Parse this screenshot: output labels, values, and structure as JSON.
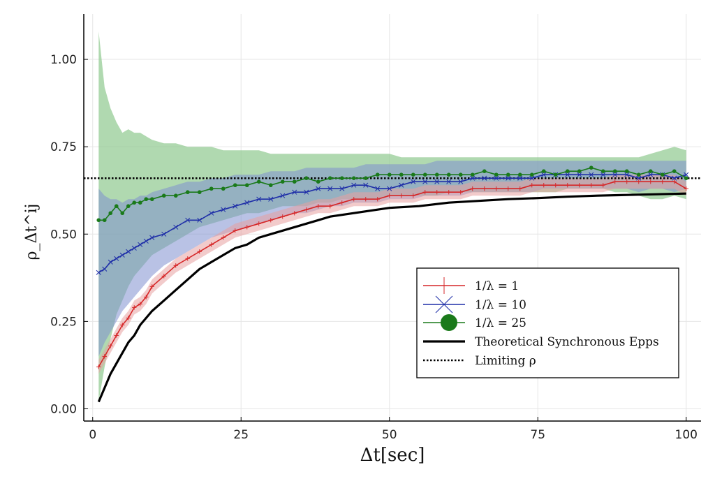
{
  "chart_data": {
    "type": "line",
    "title": "",
    "xlabel": "Δt[sec]",
    "ylabel": "ρ_Δt^ij",
    "xlim": [
      -1.5,
      102.5
    ],
    "ylim": [
      -0.035,
      1.13
    ],
    "xticks": [
      0,
      25,
      50,
      75,
      100
    ],
    "xtick_labels": [
      "0",
      "25",
      "50",
      "75",
      "100"
    ],
    "yticks": [
      0,
      0.25,
      0.5,
      0.75,
      1.0
    ],
    "ytick_labels": [
      "0.00",
      "0.25",
      "0.50",
      "0.75",
      "1.00"
    ],
    "grid": true,
    "legend_position": "bottom-right",
    "limiting_rho": 0.66,
    "series": [
      {
        "name": "1/λ = 1",
        "color": "#d62728",
        "band_color": "#e8a0a0",
        "marker": "plus",
        "x": [
          1,
          2,
          3,
          4,
          5,
          6,
          7,
          8,
          9,
          10,
          12,
          14,
          16,
          18,
          20,
          22,
          24,
          26,
          28,
          30,
          32,
          34,
          36,
          38,
          40,
          42,
          44,
          46,
          48,
          50,
          52,
          54,
          56,
          58,
          60,
          62,
          64,
          66,
          68,
          70,
          72,
          74,
          76,
          78,
          80,
          82,
          84,
          86,
          88,
          90,
          92,
          94,
          96,
          98,
          100
        ],
        "values": [
          0.12,
          0.15,
          0.18,
          0.21,
          0.24,
          0.26,
          0.29,
          0.3,
          0.32,
          0.35,
          0.38,
          0.41,
          0.43,
          0.45,
          0.47,
          0.49,
          0.51,
          0.52,
          0.53,
          0.54,
          0.55,
          0.56,
          0.57,
          0.58,
          0.58,
          0.59,
          0.6,
          0.6,
          0.6,
          0.61,
          0.61,
          0.61,
          0.62,
          0.62,
          0.62,
          0.62,
          0.63,
          0.63,
          0.63,
          0.63,
          0.63,
          0.64,
          0.64,
          0.64,
          0.64,
          0.64,
          0.64,
          0.64,
          0.65,
          0.65,
          0.65,
          0.65,
          0.65,
          0.65,
          0.63
        ],
        "lower": [
          0.1,
          0.13,
          0.16,
          0.19,
          0.22,
          0.24,
          0.27,
          0.28,
          0.3,
          0.33,
          0.36,
          0.39,
          0.41,
          0.43,
          0.45,
          0.47,
          0.49,
          0.5,
          0.51,
          0.52,
          0.53,
          0.54,
          0.55,
          0.56,
          0.56,
          0.57,
          0.58,
          0.58,
          0.58,
          0.59,
          0.59,
          0.59,
          0.6,
          0.6,
          0.6,
          0.6,
          0.61,
          0.61,
          0.61,
          0.61,
          0.61,
          0.62,
          0.62,
          0.62,
          0.62,
          0.62,
          0.62,
          0.62,
          0.63,
          0.63,
          0.63,
          0.63,
          0.63,
          0.63,
          0.61
        ],
        "upper": [
          0.14,
          0.17,
          0.2,
          0.23,
          0.26,
          0.28,
          0.31,
          0.32,
          0.34,
          0.37,
          0.4,
          0.43,
          0.45,
          0.47,
          0.49,
          0.51,
          0.53,
          0.54,
          0.55,
          0.56,
          0.57,
          0.58,
          0.59,
          0.6,
          0.6,
          0.61,
          0.62,
          0.62,
          0.62,
          0.63,
          0.63,
          0.63,
          0.64,
          0.64,
          0.64,
          0.64,
          0.65,
          0.65,
          0.65,
          0.65,
          0.65,
          0.66,
          0.66,
          0.66,
          0.66,
          0.66,
          0.66,
          0.66,
          0.67,
          0.67,
          0.67,
          0.67,
          0.67,
          0.67,
          0.65
        ]
      },
      {
        "name": "1/λ = 10",
        "color": "#1f2fa8",
        "band_color": "#7f8fd0",
        "marker": "x",
        "x": [
          1,
          2,
          3,
          4,
          5,
          6,
          7,
          8,
          9,
          10,
          12,
          14,
          16,
          18,
          20,
          22,
          24,
          26,
          28,
          30,
          32,
          34,
          36,
          38,
          40,
          42,
          44,
          46,
          48,
          50,
          52,
          54,
          56,
          58,
          60,
          62,
          64,
          66,
          68,
          70,
          72,
          74,
          76,
          78,
          80,
          82,
          84,
          86,
          88,
          90,
          92,
          94,
          96,
          98,
          100
        ],
        "values": [
          0.39,
          0.4,
          0.42,
          0.43,
          0.44,
          0.45,
          0.46,
          0.47,
          0.48,
          0.49,
          0.5,
          0.52,
          0.54,
          0.54,
          0.56,
          0.57,
          0.58,
          0.59,
          0.6,
          0.6,
          0.61,
          0.62,
          0.62,
          0.63,
          0.63,
          0.63,
          0.64,
          0.64,
          0.63,
          0.63,
          0.64,
          0.65,
          0.65,
          0.65,
          0.65,
          0.65,
          0.66,
          0.66,
          0.66,
          0.66,
          0.66,
          0.66,
          0.67,
          0.67,
          0.67,
          0.67,
          0.67,
          0.67,
          0.67,
          0.67,
          0.66,
          0.67,
          0.67,
          0.66,
          0.67
        ],
        "lower": [
          0.15,
          0.19,
          0.22,
          0.25,
          0.28,
          0.3,
          0.32,
          0.34,
          0.36,
          0.38,
          0.41,
          0.43,
          0.45,
          0.47,
          0.49,
          0.5,
          0.51,
          0.52,
          0.53,
          0.54,
          0.55,
          0.56,
          0.56,
          0.57,
          0.58,
          0.58,
          0.59,
          0.59,
          0.59,
          0.6,
          0.6,
          0.6,
          0.61,
          0.61,
          0.61,
          0.61,
          0.62,
          0.62,
          0.62,
          0.62,
          0.62,
          0.62,
          0.63,
          0.63,
          0.63,
          0.63,
          0.63,
          0.63,
          0.63,
          0.63,
          0.62,
          0.63,
          0.63,
          0.62,
          0.63
        ],
        "upper": [
          0.63,
          0.61,
          0.6,
          0.6,
          0.59,
          0.6,
          0.6,
          0.61,
          0.61,
          0.62,
          0.63,
          0.64,
          0.65,
          0.65,
          0.66,
          0.66,
          0.67,
          0.67,
          0.67,
          0.68,
          0.68,
          0.68,
          0.69,
          0.69,
          0.69,
          0.69,
          0.69,
          0.7,
          0.7,
          0.7,
          0.7,
          0.7,
          0.7,
          0.71,
          0.71,
          0.71,
          0.71,
          0.71,
          0.71,
          0.71,
          0.71,
          0.71,
          0.71,
          0.71,
          0.71,
          0.71,
          0.71,
          0.71,
          0.71,
          0.71,
          0.71,
          0.71,
          0.71,
          0.71,
          0.71
        ]
      },
      {
        "name": "1/λ = 25",
        "color": "#1a7a1a",
        "band_color": "#8fc98f",
        "marker": "circle",
        "x": [
          1,
          2,
          3,
          4,
          5,
          6,
          7,
          8,
          9,
          10,
          12,
          14,
          16,
          18,
          20,
          22,
          24,
          26,
          28,
          30,
          32,
          34,
          36,
          38,
          40,
          42,
          44,
          46,
          48,
          50,
          52,
          54,
          56,
          58,
          60,
          62,
          64,
          66,
          68,
          70,
          72,
          74,
          76,
          78,
          80,
          82,
          84,
          86,
          88,
          90,
          92,
          94,
          96,
          98,
          100
        ],
        "values": [
          0.54,
          0.54,
          0.56,
          0.58,
          0.56,
          0.58,
          0.59,
          0.59,
          0.6,
          0.6,
          0.61,
          0.61,
          0.62,
          0.62,
          0.63,
          0.63,
          0.64,
          0.64,
          0.65,
          0.64,
          0.65,
          0.65,
          0.66,
          0.65,
          0.66,
          0.66,
          0.66,
          0.66,
          0.67,
          0.67,
          0.67,
          0.67,
          0.67,
          0.67,
          0.67,
          0.67,
          0.67,
          0.68,
          0.67,
          0.67,
          0.67,
          0.67,
          0.68,
          0.67,
          0.68,
          0.68,
          0.69,
          0.68,
          0.68,
          0.68,
          0.67,
          0.68,
          0.67,
          0.68,
          0.66
        ],
        "lower": [
          0.02,
          0.12,
          0.2,
          0.27,
          0.31,
          0.35,
          0.38,
          0.4,
          0.42,
          0.44,
          0.46,
          0.48,
          0.5,
          0.52,
          0.53,
          0.54,
          0.55,
          0.56,
          0.56,
          0.57,
          0.58,
          0.58,
          0.58,
          0.59,
          0.59,
          0.6,
          0.6,
          0.6,
          0.6,
          0.61,
          0.61,
          0.61,
          0.61,
          0.61,
          0.62,
          0.62,
          0.62,
          0.62,
          0.62,
          0.62,
          0.62,
          0.62,
          0.62,
          0.62,
          0.63,
          0.63,
          0.63,
          0.63,
          0.62,
          0.62,
          0.61,
          0.6,
          0.6,
          0.61,
          0.6
        ],
        "upper": [
          1.08,
          0.92,
          0.86,
          0.82,
          0.79,
          0.8,
          0.79,
          0.79,
          0.78,
          0.77,
          0.76,
          0.76,
          0.75,
          0.75,
          0.75,
          0.74,
          0.74,
          0.74,
          0.74,
          0.73,
          0.73,
          0.73,
          0.73,
          0.73,
          0.73,
          0.73,
          0.73,
          0.73,
          0.73,
          0.73,
          0.72,
          0.72,
          0.72,
          0.72,
          0.72,
          0.72,
          0.72,
          0.72,
          0.72,
          0.72,
          0.72,
          0.72,
          0.72,
          0.72,
          0.72,
          0.72,
          0.72,
          0.72,
          0.72,
          0.72,
          0.72,
          0.73,
          0.74,
          0.75,
          0.74
        ]
      },
      {
        "name": "Theoretical Synchronous Epps",
        "color": "#000000",
        "marker": "none",
        "x": [
          1,
          2,
          3,
          4,
          5,
          6,
          7,
          8,
          9,
          10,
          12,
          14,
          16,
          18,
          20,
          22,
          24,
          26,
          28,
          30,
          32,
          34,
          36,
          38,
          40,
          42,
          44,
          46,
          48,
          50,
          55,
          60,
          65,
          70,
          75,
          80,
          85,
          90,
          95,
          100
        ],
        "values": [
          0.02,
          0.06,
          0.1,
          0.13,
          0.16,
          0.19,
          0.21,
          0.24,
          0.26,
          0.28,
          0.31,
          0.34,
          0.37,
          0.4,
          0.42,
          0.44,
          0.46,
          0.47,
          0.49,
          0.5,
          0.51,
          0.52,
          0.53,
          0.54,
          0.55,
          0.555,
          0.56,
          0.565,
          0.57,
          0.575,
          0.58,
          0.59,
          0.595,
          0.6,
          0.603,
          0.607,
          0.61,
          0.612,
          0.614,
          0.616
        ]
      },
      {
        "name": "Limiting ρ",
        "color": "#000000",
        "marker": "none",
        "dash": "dotted"
      }
    ]
  }
}
